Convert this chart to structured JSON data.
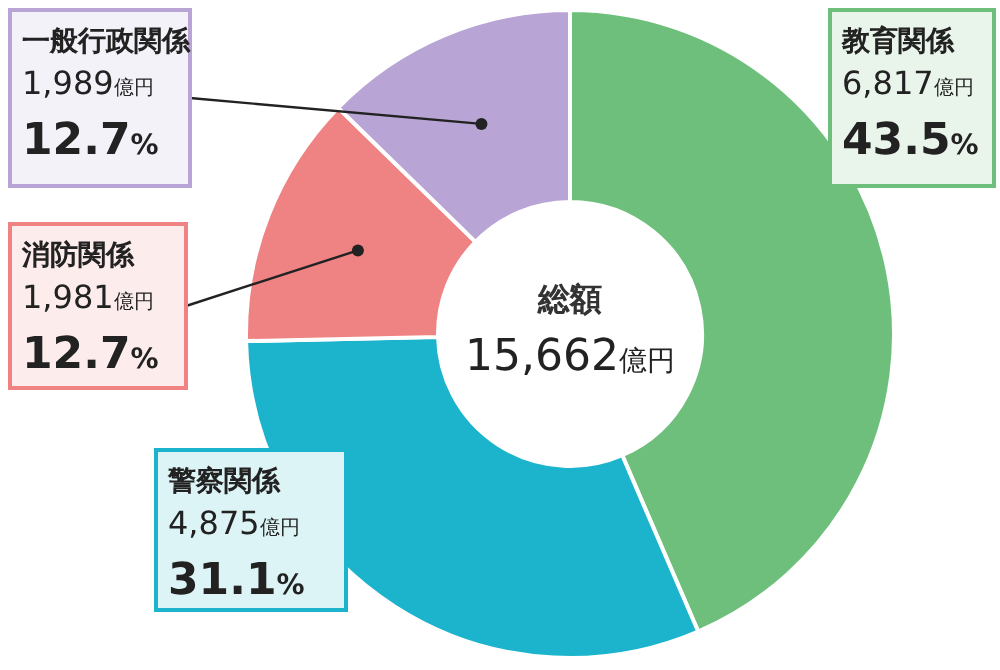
{
  "chart_data": {
    "type": "donut",
    "title": "総額",
    "subtitle": "15,662億円",
    "categories": [
      "教育関係",
      "警察関係",
      "消防関係",
      "一般行政関係"
    ],
    "values": [
      6817,
      4875,
      1981,
      1989
    ],
    "colors": [
      "#6dbf7b",
      "#1bb4cc",
      "#ef8383",
      "#b8a5d5"
    ],
    "value_labels": [
      "6,817億円",
      "4,875億円",
      "1,981億円",
      "1,989億円"
    ],
    "annotations": [
      "43.5%",
      "31.1%",
      "12.7%",
      "12.7%"
    ]
  }
}
